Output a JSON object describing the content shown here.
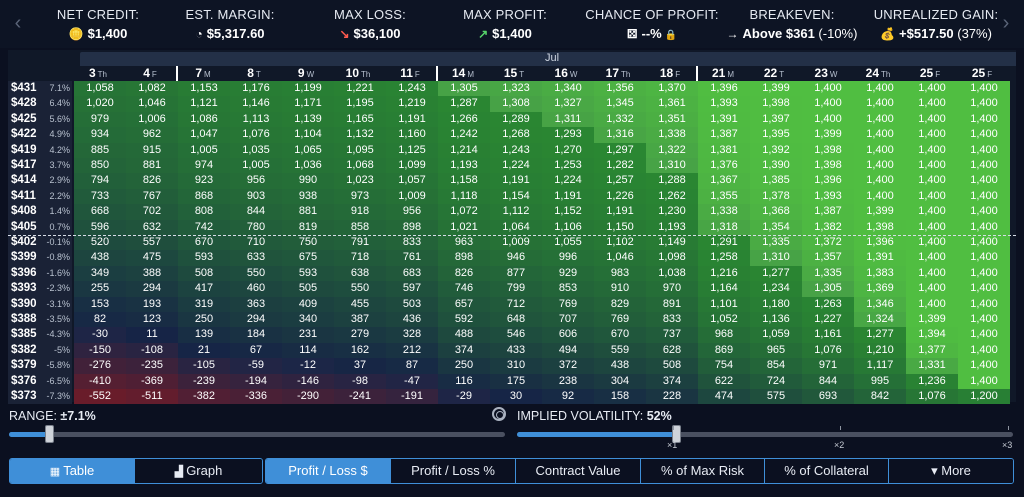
{
  "stats": [
    {
      "label": "NET CREDIT:",
      "value": "$1,400",
      "icon": "coins-icon",
      "glyph": "🪙"
    },
    {
      "label": "EST. MARGIN:",
      "value": "$5,317.60",
      "icon": "pie-chart-icon",
      "glyph": "◔"
    },
    {
      "label": "MAX LOSS:",
      "value": "$36,100",
      "icon": "arrow-down-right-icon",
      "glyph": "↘"
    },
    {
      "label": "MAX PROFIT:",
      "value": "$1,400",
      "icon": "arrow-up-right-icon",
      "glyph": "↗"
    },
    {
      "label": "CHANCE OF PROFIT:",
      "value": "--%",
      "icon": "dice-icon",
      "glyph": "⚄"
    },
    {
      "label": "BREAKEVEN:",
      "value": "Above $361",
      "value2": "(-10%)",
      "icon": "arrow-right-icon",
      "glyph": "→"
    },
    {
      "label": "UNREALIZED GAIN:",
      "value": "+$517.50",
      "value2": "(37%)",
      "icon": "money-bag-icon",
      "glyph": "💰"
    }
  ],
  "colors": {
    "accent": "#3f8fd8",
    "profit": "#4cc04a",
    "loss": "#6a1f2c",
    "neutral": "#1a2848"
  },
  "month": "Jul",
  "dates": [
    {
      "d": "3",
      "w": "Th"
    },
    {
      "d": "4",
      "w": "F"
    },
    {
      "d": "7",
      "w": "M"
    },
    {
      "d": "8",
      "w": "T"
    },
    {
      "d": "9",
      "w": "W"
    },
    {
      "d": "10",
      "w": "Th"
    },
    {
      "d": "11",
      "w": "F"
    },
    {
      "d": "14",
      "w": "M"
    },
    {
      "d": "15",
      "w": "T"
    },
    {
      "d": "16",
      "w": "W"
    },
    {
      "d": "17",
      "w": "Th"
    },
    {
      "d": "18",
      "w": "F"
    },
    {
      "d": "21",
      "w": "M"
    },
    {
      "d": "22",
      "w": "T"
    },
    {
      "d": "23",
      "w": "W"
    },
    {
      "d": "24",
      "w": "Th"
    },
    {
      "d": "25",
      "w": "F"
    },
    {
      "d": "25",
      "w": "F"
    }
  ],
  "rows": [
    {
      "price": "$431",
      "pct": "7.1%",
      "v": [
        1058,
        1082,
        1153,
        1176,
        1199,
        1221,
        1243,
        1305,
        1323,
        1340,
        1356,
        1370,
        1396,
        1399,
        1400,
        1400,
        1400,
        1400
      ]
    },
    {
      "price": "$428",
      "pct": "6.4%",
      "v": [
        1020,
        1046,
        1121,
        1146,
        1171,
        1195,
        1219,
        1287,
        1308,
        1327,
        1345,
        1361,
        1393,
        1398,
        1400,
        1400,
        1400,
        1400
      ]
    },
    {
      "price": "$425",
      "pct": "5.6%",
      "v": [
        979,
        1006,
        1086,
        1113,
        1139,
        1165,
        1191,
        1266,
        1289,
        1311,
        1332,
        1351,
        1391,
        1397,
        1400,
        1400,
        1400,
        1400
      ]
    },
    {
      "price": "$422",
      "pct": "4.9%",
      "v": [
        934,
        962,
        1047,
        1076,
        1104,
        1132,
        1160,
        1242,
        1268,
        1293,
        1316,
        1338,
        1387,
        1395,
        1399,
        1400,
        1400,
        1400
      ]
    },
    {
      "price": "$419",
      "pct": "4.2%",
      "v": [
        885,
        915,
        1005,
        1035,
        1065,
        1095,
        1125,
        1214,
        1243,
        1270,
        1297,
        1322,
        1381,
        1392,
        1398,
        1400,
        1400,
        1400
      ]
    },
    {
      "price": "$417",
      "pct": "3.7%",
      "v": [
        850,
        881,
        974,
        1005,
        1036,
        1068,
        1099,
        1193,
        1224,
        1253,
        1282,
        1310,
        1376,
        1390,
        1398,
        1400,
        1400,
        1400
      ]
    },
    {
      "price": "$414",
      "pct": "2.9%",
      "v": [
        794,
        826,
        923,
        956,
        990,
        1023,
        1057,
        1158,
        1191,
        1224,
        1257,
        1288,
        1367,
        1385,
        1396,
        1400,
        1400,
        1400
      ]
    },
    {
      "price": "$411",
      "pct": "2.2%",
      "v": [
        733,
        767,
        868,
        903,
        938,
        973,
        1009,
        1118,
        1154,
        1191,
        1226,
        1262,
        1355,
        1378,
        1393,
        1400,
        1400,
        1400
      ]
    },
    {
      "price": "$408",
      "pct": "1.4%",
      "v": [
        668,
        702,
        808,
        844,
        881,
        918,
        956,
        1072,
        1112,
        1152,
        1191,
        1230,
        1338,
        1368,
        1387,
        1399,
        1400,
        1400
      ]
    },
    {
      "price": "$405",
      "pct": "0.7%",
      "v": [
        596,
        632,
        742,
        780,
        819,
        858,
        898,
        1021,
        1064,
        1106,
        1150,
        1193,
        1318,
        1354,
        1382,
        1398,
        1400,
        1400
      ]
    },
    {
      "price": "$402",
      "pct": "-0.1%",
      "v": [
        520,
        557,
        670,
        710,
        750,
        791,
        833,
        963,
        1009,
        1055,
        1102,
        1149,
        1291,
        1335,
        1372,
        1396,
        1400,
        1400
      ]
    },
    {
      "price": "$399",
      "pct": "-0.8%",
      "v": [
        438,
        475,
        593,
        633,
        675,
        718,
        761,
        898,
        946,
        996,
        1046,
        1098,
        1258,
        1310,
        1357,
        1391,
        1400,
        1400
      ]
    },
    {
      "price": "$396",
      "pct": "-1.6%",
      "v": [
        349,
        388,
        508,
        550,
        593,
        638,
        683,
        826,
        877,
        929,
        983,
        1038,
        1216,
        1277,
        1335,
        1383,
        1400,
        1400
      ]
    },
    {
      "price": "$393",
      "pct": "-2.3%",
      "v": [
        255,
        294,
        417,
        460,
        505,
        550,
        597,
        746,
        799,
        853,
        910,
        970,
        1164,
        1234,
        1305,
        1369,
        1400,
        1400
      ]
    },
    {
      "price": "$390",
      "pct": "-3.1%",
      "v": [
        153,
        193,
        319,
        363,
        409,
        455,
        503,
        657,
        712,
        769,
        829,
        891,
        1101,
        1180,
        1263,
        1346,
        1400,
        1400
      ]
    },
    {
      "price": "$388",
      "pct": "-3.5%",
      "v": [
        82,
        123,
        250,
        294,
        340,
        387,
        436,
        592,
        648,
        707,
        769,
        833,
        1052,
        1136,
        1227,
        1324,
        1399,
        1400
      ]
    },
    {
      "price": "$385",
      "pct": "-4.3%",
      "v": [
        -30,
        11,
        139,
        184,
        231,
        279,
        328,
        488,
        546,
        606,
        670,
        737,
        968,
        1059,
        1161,
        1277,
        1394,
        1400
      ]
    },
    {
      "price": "$382",
      "pct": "-5%",
      "v": [
        -150,
        -108,
        21,
        67,
        114,
        162,
        212,
        374,
        433,
        494,
        559,
        628,
        869,
        965,
        1076,
        1210,
        1377,
        1400
      ]
    },
    {
      "price": "$379",
      "pct": "-5.8%",
      "v": [
        -276,
        -235,
        -105,
        -59,
        -12,
        37,
        87,
        250,
        310,
        372,
        438,
        508,
        754,
        854,
        971,
        1117,
        1331,
        1400
      ]
    },
    {
      "price": "$376",
      "pct": "-6.5%",
      "v": [
        -410,
        -369,
        -239,
        -194,
        -146,
        -98,
        -47,
        116,
        175,
        238,
        304,
        374,
        622,
        724,
        844,
        995,
        1236,
        1400
      ]
    },
    {
      "price": "$373",
      "pct": "-7.3%",
      "v": [
        -552,
        -511,
        -382,
        -336,
        -290,
        -241,
        -191,
        -29,
        30,
        92,
        158,
        228,
        474,
        575,
        693,
        842,
        1076,
        1200
      ]
    }
  ],
  "range": {
    "label": "RANGE:",
    "value": "±7.1%",
    "fraction": 0.08
  },
  "iv": {
    "label": "IMPLIED VOLATILITY:",
    "value": "52%",
    "fraction": 0.32,
    "ticks": [
      "×1",
      "×2",
      "×3"
    ]
  },
  "view_tabs": [
    {
      "label": "Table",
      "icon": "table-icon",
      "glyph": "▦",
      "active": true
    },
    {
      "label": "Graph",
      "icon": "graph-icon",
      "glyph": "▟",
      "active": false
    }
  ],
  "metric_tabs": [
    {
      "label": "Profit / Loss $",
      "active": true
    },
    {
      "label": "Profit / Loss %",
      "active": false
    },
    {
      "label": "Contract Value",
      "active": false
    },
    {
      "label": "% of Max Risk",
      "active": false
    },
    {
      "label": "% of Collateral",
      "active": false
    },
    {
      "label": "▾ More",
      "active": false
    }
  ]
}
